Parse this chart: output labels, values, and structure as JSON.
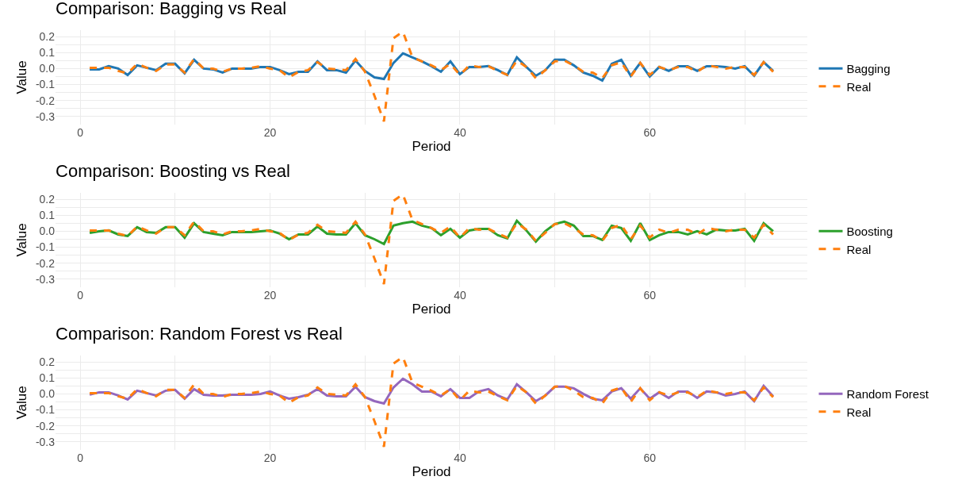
{
  "chart_data": [
    {
      "type": "line",
      "title": "Comparison: Bagging vs Real",
      "xlabel": "Period",
      "ylabel": "Value",
      "x": [
        1,
        2,
        3,
        4,
        5,
        6,
        7,
        8,
        9,
        10,
        11,
        12,
        13,
        14,
        15,
        16,
        17,
        18,
        19,
        20,
        21,
        22,
        23,
        24,
        25,
        26,
        27,
        28,
        29,
        30,
        31,
        32,
        33,
        34,
        35,
        36,
        37,
        38,
        39,
        40,
        41,
        42,
        43,
        44,
        45,
        46,
        47,
        48,
        49,
        50,
        51,
        52,
        53,
        54,
        55,
        56,
        57,
        58,
        59,
        60,
        61,
        62,
        63,
        64,
        65,
        66,
        67,
        68,
        69,
        70,
        71,
        72,
        73
      ],
      "xlim": [
        -2.6,
        76.6
      ],
      "xticks": [
        0,
        {
          "value": 10,
          "label": null
        },
        20,
        {
          "value": 30,
          "label": null
        },
        40,
        {
          "value": 50,
          "label": null
        },
        60,
        {
          "value": 70,
          "label": null
        }
      ],
      "ylim": [
        -0.35,
        0.24
      ],
      "yticks": [
        -0.3,
        {
          "value": -0.25,
          "label": null
        },
        -0.2,
        {
          "value": -0.15,
          "label": null
        },
        -0.1,
        {
          "value": -0.05,
          "label": null
        },
        {
          "value": 0,
          "label": "0.0"
        },
        {
          "value": 0.05,
          "label": null
        },
        0.1,
        {
          "value": 0.15,
          "label": null
        },
        0.2
      ],
      "grid": true,
      "legend": "right",
      "marker": "none",
      "series": [
        {
          "name": "Bagging",
          "color": "#1f77b4",
          "line_style": "solid",
          "values": [
            -0.005,
            -0.005,
            0.015,
            0.0,
            -0.04,
            0.02,
            0.005,
            -0.01,
            0.03,
            0.03,
            -0.03,
            0.055,
            0.0,
            -0.005,
            -0.025,
            0.0,
            0.0,
            0.0,
            0.01,
            0.01,
            -0.01,
            -0.035,
            -0.02,
            -0.02,
            0.045,
            -0.01,
            -0.01,
            -0.025,
            0.05,
            -0.015,
            -0.055,
            -0.065,
            0.035,
            0.095,
            0.07,
            0.045,
            0.015,
            -0.02,
            0.045,
            -0.035,
            0.01,
            0.01,
            0.015,
            -0.01,
            -0.04,
            0.07,
            0.01,
            -0.045,
            -0.01,
            0.055,
            0.055,
            0.02,
            -0.025,
            -0.045,
            -0.075,
            0.03,
            0.055,
            -0.045,
            0.035,
            -0.05,
            0.01,
            -0.015,
            0.015,
            0.015,
            -0.015,
            0.015,
            0.015,
            0.01,
            0.0,
            0.015,
            -0.045,
            0.04,
            -0.015
          ]
        },
        {
          "name": "Real",
          "color": "#ff7f0e",
          "line_style": "dashed",
          "values": [
            0.005,
            0.005,
            0.005,
            -0.015,
            -0.03,
            0.03,
            0.005,
            -0.015,
            0.025,
            0.025,
            -0.025,
            0.06,
            0.0,
            0.0,
            -0.02,
            0.0,
            0.0,
            0.005,
            0.015,
            0.0,
            -0.01,
            -0.055,
            -0.02,
            -0.01,
            0.04,
            0.0,
            -0.005,
            -0.01,
            0.06,
            -0.02,
            -0.17,
            -0.33,
            0.19,
            0.23,
            0.07,
            0.045,
            0.02,
            -0.01,
            0.03,
            -0.04,
            0.02,
            0.01,
            0.015,
            -0.015,
            -0.04,
            0.05,
            0.01,
            -0.06,
            -0.01,
            0.045,
            0.05,
            0.02,
            -0.02,
            -0.025,
            -0.06,
            0.02,
            0.04,
            -0.05,
            0.035,
            -0.04,
            0.01,
            -0.01,
            0.01,
            0.01,
            -0.02,
            0.02,
            0.01,
            0.0,
            0.01,
            0.01,
            -0.04,
            0.04,
            -0.02
          ]
        }
      ]
    },
    {
      "type": "line",
      "title": "Comparison: Boosting vs Real",
      "xlabel": "Period",
      "ylabel": "Value",
      "x": [
        1,
        2,
        3,
        4,
        5,
        6,
        7,
        8,
        9,
        10,
        11,
        12,
        13,
        14,
        15,
        16,
        17,
        18,
        19,
        20,
        21,
        22,
        23,
        24,
        25,
        26,
        27,
        28,
        29,
        30,
        31,
        32,
        33,
        34,
        35,
        36,
        37,
        38,
        39,
        40,
        41,
        42,
        43,
        44,
        45,
        46,
        47,
        48,
        49,
        50,
        51,
        52,
        53,
        54,
        55,
        56,
        57,
        58,
        59,
        60,
        61,
        62,
        63,
        64,
        65,
        66,
        67,
        68,
        69,
        70,
        71,
        72,
        73
      ],
      "xlim": [
        -2.6,
        76.6
      ],
      "xticks": [
        0,
        {
          "value": 10,
          "label": null
        },
        20,
        {
          "value": 30,
          "label": null
        },
        40,
        {
          "value": 50,
          "label": null
        },
        60,
        {
          "value": 70,
          "label": null
        }
      ],
      "ylim": [
        -0.35,
        0.24
      ],
      "yticks": [
        -0.3,
        {
          "value": -0.25,
          "label": null
        },
        -0.2,
        {
          "value": -0.15,
          "label": null
        },
        -0.1,
        {
          "value": -0.05,
          "label": null
        },
        {
          "value": 0,
          "label": "0.0"
        },
        {
          "value": 0.05,
          "label": null
        },
        0.1,
        {
          "value": 0.15,
          "label": null
        },
        0.2
      ],
      "grid": true,
      "legend": "right",
      "marker": "none",
      "series": [
        {
          "name": "Boosting",
          "color": "#2ca02c",
          "line_style": "solid",
          "values": [
            -0.01,
            0.0,
            0.005,
            -0.02,
            -0.03,
            0.025,
            -0.005,
            -0.01,
            0.025,
            0.025,
            -0.04,
            0.05,
            -0.005,
            -0.015,
            -0.025,
            -0.005,
            -0.005,
            -0.005,
            0.0,
            0.005,
            -0.015,
            -0.05,
            -0.02,
            -0.02,
            0.03,
            -0.015,
            -0.02,
            -0.02,
            0.05,
            -0.025,
            -0.05,
            -0.08,
            0.035,
            0.05,
            0.06,
            0.035,
            0.02,
            -0.025,
            0.015,
            -0.04,
            0.005,
            0.015,
            0.015,
            -0.025,
            -0.045,
            0.065,
            0.005,
            -0.065,
            0.0,
            0.045,
            0.06,
            0.035,
            -0.03,
            -0.03,
            -0.055,
            0.035,
            0.02,
            -0.06,
            0.05,
            -0.055,
            -0.025,
            -0.005,
            -0.005,
            -0.02,
            0.0,
            -0.02,
            0.01,
            0.005,
            0.005,
            0.015,
            -0.06,
            0.05,
            0.0
          ]
        },
        {
          "name": "Real",
          "color": "#ff7f0e",
          "line_style": "dashed",
          "values": [
            0.005,
            0.005,
            0.005,
            -0.015,
            -0.03,
            0.03,
            0.005,
            -0.015,
            0.025,
            0.025,
            -0.025,
            0.06,
            0.0,
            0.0,
            -0.02,
            0.0,
            0.0,
            0.005,
            0.015,
            0.0,
            -0.01,
            -0.055,
            -0.02,
            -0.01,
            0.04,
            0.0,
            -0.005,
            -0.01,
            0.06,
            -0.02,
            -0.17,
            -0.33,
            0.19,
            0.23,
            0.07,
            0.045,
            0.02,
            -0.01,
            0.03,
            -0.04,
            0.02,
            0.01,
            0.015,
            -0.015,
            -0.04,
            0.05,
            0.01,
            -0.06,
            -0.01,
            0.045,
            0.05,
            0.02,
            -0.02,
            -0.025,
            -0.06,
            0.02,
            0.04,
            -0.05,
            0.035,
            -0.04,
            0.01,
            -0.01,
            0.01,
            0.01,
            -0.02,
            0.02,
            0.01,
            0.0,
            0.01,
            0.01,
            -0.04,
            0.04,
            -0.02
          ]
        }
      ]
    },
    {
      "type": "line",
      "title": "Comparison: Random Forest vs Real",
      "xlabel": "Period",
      "ylabel": "Value",
      "x": [
        1,
        2,
        3,
        4,
        5,
        6,
        7,
        8,
        9,
        10,
        11,
        12,
        13,
        14,
        15,
        16,
        17,
        18,
        19,
        20,
        21,
        22,
        23,
        24,
        25,
        26,
        27,
        28,
        29,
        30,
        31,
        32,
        33,
        34,
        35,
        36,
        37,
        38,
        39,
        40,
        41,
        42,
        43,
        44,
        45,
        46,
        47,
        48,
        49,
        50,
        51,
        52,
        53,
        54,
        55,
        56,
        57,
        58,
        59,
        60,
        61,
        62,
        63,
        64,
        65,
        66,
        67,
        68,
        69,
        70,
        71,
        72,
        73
      ],
      "xlim": [
        -2.6,
        76.6
      ],
      "xticks": [
        0,
        {
          "value": 10,
          "label": null
        },
        20,
        {
          "value": 30,
          "label": null
        },
        40,
        {
          "value": 50,
          "label": null
        },
        60,
        {
          "value": 70,
          "label": null
        }
      ],
      "ylim": [
        -0.35,
        0.24
      ],
      "yticks": [
        -0.3,
        {
          "value": -0.25,
          "label": null
        },
        -0.2,
        {
          "value": -0.15,
          "label": null
        },
        -0.1,
        {
          "value": -0.05,
          "label": null
        },
        {
          "value": 0,
          "label": "0.0"
        },
        {
          "value": 0.05,
          "label": null
        },
        0.1,
        {
          "value": 0.15,
          "label": null
        },
        0.2
      ],
      "grid": true,
      "legend": "right",
      "marker": "none",
      "series": [
        {
          "name": "Random Forest",
          "color": "#9467bd",
          "line_style": "solid",
          "values": [
            -0.005,
            0.01,
            0.01,
            -0.01,
            -0.035,
            0.02,
            0.005,
            -0.01,
            0.02,
            0.025,
            -0.03,
            0.03,
            -0.005,
            -0.01,
            -0.01,
            -0.005,
            -0.005,
            -0.005,
            0.0,
            0.015,
            -0.01,
            -0.03,
            -0.02,
            -0.005,
            0.03,
            -0.01,
            -0.015,
            -0.015,
            0.045,
            -0.02,
            -0.045,
            -0.06,
            0.04,
            0.095,
            0.06,
            0.015,
            0.015,
            -0.015,
            0.03,
            -0.025,
            -0.025,
            0.015,
            0.03,
            -0.01,
            -0.035,
            0.06,
            0.01,
            -0.045,
            -0.01,
            0.045,
            0.045,
            0.035,
            0.0,
            -0.03,
            -0.04,
            0.015,
            0.035,
            -0.03,
            0.035,
            -0.03,
            0.01,
            -0.025,
            0.015,
            0.015,
            -0.025,
            0.015,
            0.01,
            -0.01,
            0.0,
            0.015,
            -0.045,
            0.05,
            -0.015
          ]
        },
        {
          "name": "Real",
          "color": "#ff7f0e",
          "line_style": "dashed",
          "values": [
            0.005,
            0.005,
            0.005,
            -0.015,
            -0.03,
            0.03,
            0.005,
            -0.015,
            0.025,
            0.025,
            -0.025,
            0.06,
            0.0,
            0.0,
            -0.02,
            0.0,
            0.0,
            0.005,
            0.015,
            0.0,
            -0.01,
            -0.055,
            -0.02,
            -0.01,
            0.04,
            0.0,
            -0.005,
            -0.01,
            0.06,
            -0.02,
            -0.17,
            -0.33,
            0.19,
            0.23,
            0.07,
            0.045,
            0.02,
            -0.01,
            0.03,
            -0.04,
            0.02,
            0.01,
            0.015,
            -0.015,
            -0.04,
            0.05,
            0.01,
            -0.06,
            -0.01,
            0.045,
            0.05,
            0.02,
            -0.02,
            -0.025,
            -0.06,
            0.02,
            0.04,
            -0.05,
            0.035,
            -0.04,
            0.01,
            -0.01,
            0.01,
            0.01,
            -0.02,
            0.02,
            0.01,
            0.0,
            0.01,
            0.01,
            -0.04,
            0.04,
            -0.02
          ]
        }
      ]
    }
  ]
}
